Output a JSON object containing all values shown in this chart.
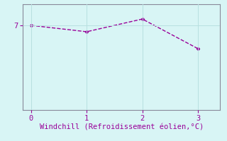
{
  "x": [
    0,
    1,
    2,
    3
  ],
  "y": [
    7.0,
    6.85,
    7.15,
    6.45
  ],
  "line_color": "#990099",
  "marker": "D",
  "marker_size": 2.5,
  "background_color": "#d8f5f5",
  "xlabel": "Windchill (Refroidissement éolien,°C)",
  "xlabel_color": "#990099",
  "xlabel_fontsize": 7.5,
  "tick_color": "#990099",
  "grid_color": "#b8e0e0",
  "xlim": [
    -0.15,
    3.4
  ],
  "ylim": [
    5.0,
    7.5
  ],
  "yticks": [
    7
  ],
  "xticks": [
    0,
    1,
    2,
    3
  ],
  "spine_color": "#888899",
  "linestyle": "--",
  "linewidth": 1.0
}
